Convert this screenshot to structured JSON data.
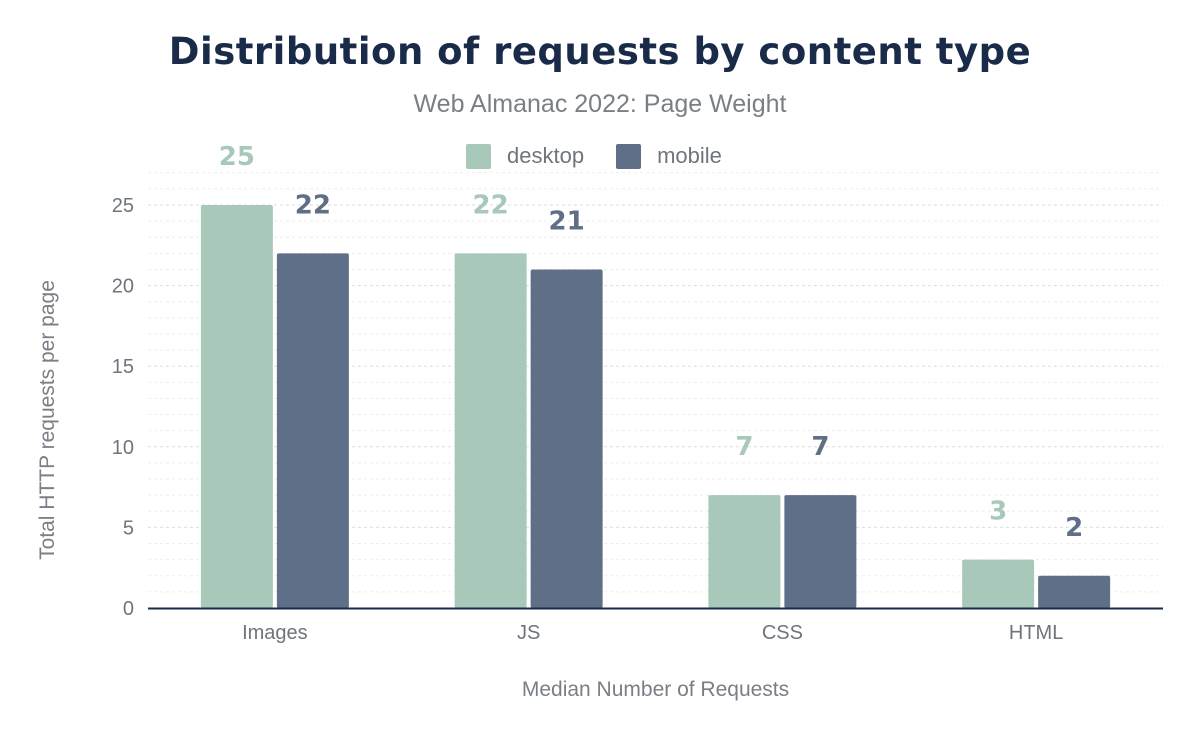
{
  "chart_data": {
    "type": "bar",
    "title": "Distribution of requests by content type",
    "subtitle": "Web Almanac 2022: Page Weight",
    "xlabel": "Median Number of Requests",
    "ylabel": "Total HTTP requests per page",
    "categories": [
      "Images",
      "JS",
      "CSS",
      "HTML"
    ],
    "series": [
      {
        "name": "desktop",
        "color": "#a8c9ba",
        "values": [
          25,
          22,
          7,
          3
        ]
      },
      {
        "name": "mobile",
        "color": "#5f6f88",
        "values": [
          22,
          21,
          7,
          2
        ]
      }
    ],
    "ylim": [
      0,
      27
    ],
    "yticks": [
      "0",
      "5",
      "10",
      "15",
      "20",
      "25"
    ],
    "grid": true,
    "legend": "top-center",
    "data_labels": true
  }
}
